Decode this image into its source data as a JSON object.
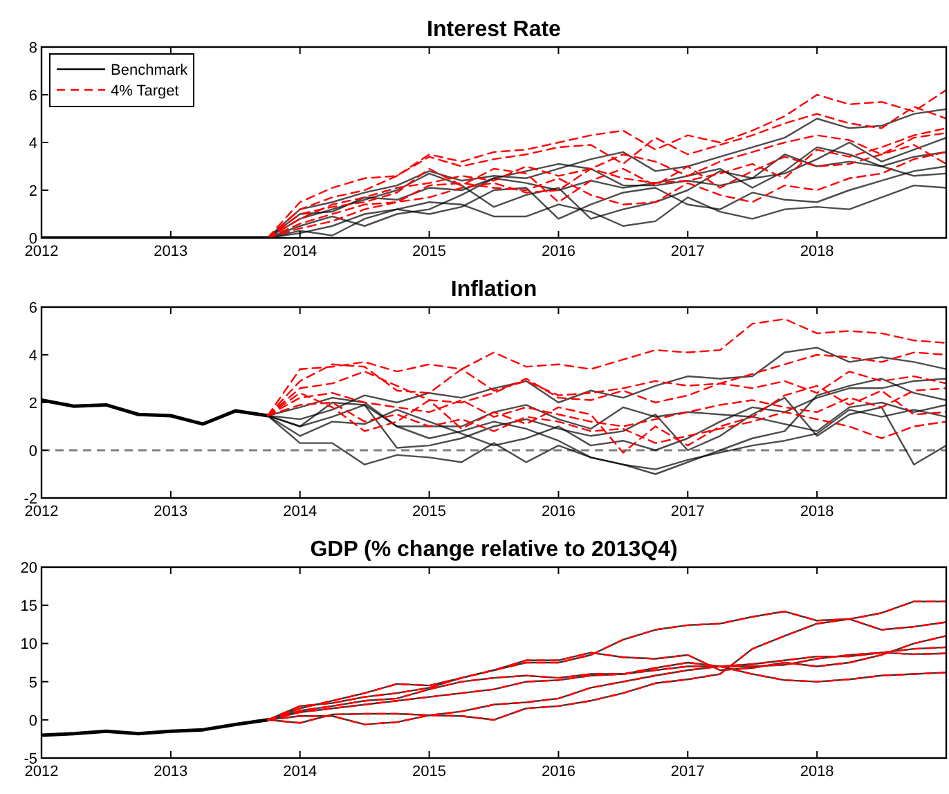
{
  "chart_data": [
    {
      "type": "line",
      "title": "Interest Rate",
      "xlim": [
        2012,
        2019
      ],
      "xticks": [
        2012,
        2013,
        2014,
        2015,
        2016,
        2017,
        2018
      ],
      "ylim": [
        0,
        8
      ],
      "yticks": [
        0,
        2,
        4,
        6,
        8
      ],
      "legend": "top left",
      "grid": false,
      "x": [
        2013.75,
        2014,
        2014.25,
        2014.5,
        2014.75,
        2015,
        2015.25,
        2015.5,
        2015.75,
        2016,
        2016.25,
        2016.5,
        2016.75,
        2017,
        2017.25,
        2017.5,
        2017.75,
        2018,
        2018.25,
        2018.5,
        2018.75,
        2019
      ],
      "series": [
        {
          "color": "#000000",
          "x": [
            2012,
            2013.75
          ],
          "values": [
            0,
            0
          ]
        },
        {
          "name": "Benchmark",
          "color": "#000000",
          "values": [
            0,
            1.2,
            1.5,
            1.9,
            2.2,
            2.8,
            2.4,
            2.6,
            2.5,
            2.9,
            3.3,
            3.6,
            2.8,
            3.0,
            3.4,
            3.8,
            4.2,
            5.0,
            4.6,
            4.7,
            5.2,
            5.4
          ]
        },
        {
          "color": "#000000",
          "values": [
            0,
            0.8,
            1.2,
            1.6,
            2.0,
            2.7,
            2.2,
            1.3,
            1.8,
            2.1,
            0.8,
            1.2,
            1.5,
            2.0,
            2.8,
            2.5,
            3.5,
            3.0,
            3.2,
            3.0,
            3.4,
            3.6
          ]
        },
        {
          "color": "#000000",
          "values": [
            0,
            0.3,
            0.1,
            0.8,
            1.2,
            1.5,
            1.4,
            0.9,
            0.9,
            1.4,
            1.1,
            0.5,
            0.7,
            1.7,
            1.1,
            0.8,
            1.2,
            1.3,
            1.2,
            1.7,
            2.2,
            2.1
          ]
        },
        {
          "color": "#000000",
          "values": [
            0,
            0.5,
            0.9,
            0.5,
            1.0,
            1.2,
            1.8,
            2.5,
            2.3,
            2.0,
            2.4,
            2.1,
            2.3,
            2.6,
            2.9,
            2.1,
            2.8,
            3.8,
            3.5,
            3.0,
            2.6,
            2.7
          ]
        },
        {
          "color": "#000000",
          "values": [
            0,
            0.2,
            0.5,
            1.0,
            1.2,
            1.0,
            1.3,
            2.0,
            2.1,
            0.8,
            1.4,
            1.9,
            2.1,
            1.4,
            1.2,
            1.9,
            1.6,
            1.5,
            2.0,
            2.4,
            2.8,
            3.0
          ]
        },
        {
          "color": "#000000",
          "values": [
            0,
            1.0,
            1.1,
            1.7,
            1.6,
            2.1,
            2.0,
            2.5,
            2.8,
            3.1,
            2.9,
            2.2,
            2.2,
            2.4,
            2.2,
            2.5,
            2.7,
            3.3,
            4.0,
            3.2,
            3.7,
            4.2
          ]
        },
        {
          "name": "4% Target",
          "color": "#ff0000",
          "line_style": "dashed",
          "values": [
            0,
            1.5,
            2.1,
            2.5,
            2.6,
            3.5,
            3.2,
            3.6,
            3.7,
            4.0,
            4.3,
            4.5,
            3.7,
            4.3,
            4.0,
            4.5,
            5.1,
            6.0,
            5.6,
            5.7,
            5.3,
            6.2
          ]
        },
        {
          "color": "#ff0000",
          "line_style": "dashed",
          "values": [
            0,
            1.2,
            1.7,
            2.0,
            2.6,
            3.4,
            3.0,
            3.3,
            3.5,
            3.8,
            3.9,
            3.1,
            4.2,
            3.5,
            3.9,
            4.3,
            4.8,
            5.2,
            4.8,
            4.6,
            5.5,
            5.0
          ]
        },
        {
          "color": "#ff0000",
          "line_style": "dashed",
          "values": [
            0,
            0.8,
            1.4,
            1.7,
            2.1,
            2.3,
            2.6,
            2.4,
            3.0,
            2.6,
            2.9,
            3.5,
            3.2,
            2.6,
            3.2,
            3.6,
            4.0,
            4.3,
            4.1,
            3.5,
            4.2,
            4.4
          ]
        },
        {
          "color": "#ff0000",
          "line_style": "dashed",
          "values": [
            0,
            0.6,
            1.0,
            1.4,
            1.5,
            2.2,
            2.3,
            2.1,
            2.0,
            2.5,
            1.8,
            1.4,
            1.5,
            2.3,
            1.8,
            1.5,
            2.2,
            2.0,
            2.5,
            2.7,
            3.3,
            3.6
          ]
        },
        {
          "color": "#ff0000",
          "line_style": "dashed",
          "values": [
            0,
            1.0,
            1.3,
            1.5,
            1.9,
            2.9,
            2.2,
            2.9,
            2.7,
            1.5,
            2.4,
            2.9,
            2.2,
            3.0,
            2.1,
            2.8,
            3.4,
            3.0,
            3.1,
            3.5,
            3.9,
            3.1
          ]
        },
        {
          "color": "#ff0000",
          "line_style": "dashed",
          "values": [
            0,
            0.4,
            0.7,
            1.2,
            1.5,
            1.7,
            2.1,
            2.3,
            1.9,
            2.0,
            2.9,
            2.5,
            2.3,
            2.4,
            2.7,
            3.1,
            2.5,
            3.7,
            3.4,
            3.8,
            4.3,
            4.6
          ]
        }
      ]
    },
    {
      "type": "line",
      "title": "Inflation",
      "xlim": [
        2012,
        2019
      ],
      "xticks": [
        2012,
        2013,
        2014,
        2015,
        2016,
        2017,
        2018
      ],
      "ylim": [
        -2,
        6
      ],
      "yticks": [
        -2,
        0,
        2,
        4,
        6
      ],
      "grid": false,
      "ref_lines": [
        {
          "axis": "y",
          "value": 0,
          "color": "#808080",
          "line_style": "dashed"
        }
      ],
      "x": [
        2013.75,
        2014,
        2014.25,
        2014.5,
        2014.75,
        2015,
        2015.25,
        2015.5,
        2015.75,
        2016,
        2016.25,
        2016.5,
        2016.75,
        2017,
        2017.25,
        2017.5,
        2017.75,
        2018,
        2018.25,
        2018.5,
        2018.75,
        2019
      ],
      "series": [
        {
          "color": "#000000",
          "x": [
            2012,
            2012.25,
            2012.5,
            2012.75,
            2013,
            2013.25,
            2013.5,
            2013.75
          ],
          "values": [
            2.1,
            1.85,
            1.9,
            1.5,
            1.45,
            1.1,
            1.65,
            1.45
          ]
        },
        {
          "color": "#000000",
          "values": [
            1.45,
            1.8,
            2.2,
            2.0,
            1.0,
            0.5,
            0.8,
            1.2,
            0.9,
            0.4,
            -0.3,
            -0.6,
            -1.0,
            -0.5,
            0.0,
            0.5,
            0.8,
            2.3,
            2.7,
            3.0,
            2.4,
            2.1
          ]
        },
        {
          "color": "#000000",
          "values": [
            1.45,
            1.3,
            1.7,
            2.3,
            2.0,
            2.4,
            2.2,
            2.6,
            2.9,
            2.0,
            2.5,
            2.2,
            2.7,
            3.1,
            3.0,
            3.1,
            4.1,
            4.3,
            3.7,
            3.9,
            3.7,
            3.4
          ]
        },
        {
          "color": "#000000",
          "values": [
            1.45,
            0.3,
            0.3,
            -0.6,
            -0.2,
            -0.3,
            -0.5,
            0.3,
            -0.5,
            0.2,
            -0.3,
            -0.6,
            -0.8,
            -0.4,
            -0.1,
            0.2,
            0.4,
            0.7,
            1.7,
            1.4,
            1.7,
            1.4
          ]
        },
        {
          "color": "#000000",
          "values": [
            1.45,
            1.0,
            1.4,
            1.9,
            0.1,
            0.2,
            0.5,
            1.0,
            1.3,
            0.9,
            0.6,
            0.8,
            1.5,
            0.0,
            0.6,
            1.5,
            2.2,
            0.6,
            1.5,
            1.8,
            -0.6,
            0.2
          ]
        },
        {
          "color": "#000000",
          "values": [
            1.45,
            0.6,
            1.2,
            1.1,
            1.7,
            1.2,
            0.7,
            0.2,
            0.5,
            1.0,
            0.2,
            0.4,
            0.0,
            0.5,
            1.2,
            1.8,
            1.6,
            2.2,
            2.6,
            2.6,
            2.9,
            3.0
          ]
        },
        {
          "color": "#000000",
          "values": [
            1.45,
            1.0,
            2.0,
            1.9,
            1.0,
            1.0,
            1.0,
            1.6,
            1.9,
            1.3,
            0.9,
            1.8,
            1.4,
            1.6,
            1.5,
            1.4,
            1.1,
            0.8,
            1.8,
            2.0,
            1.6,
            1.9
          ]
        },
        {
          "color": "#ff0000",
          "line_style": "dashed",
          "values": [
            1.45,
            3.4,
            3.5,
            3.7,
            3.3,
            3.6,
            3.4,
            4.1,
            3.5,
            3.6,
            3.4,
            3.8,
            4.2,
            4.1,
            4.2,
            5.3,
            5.5,
            4.9,
            5.0,
            4.9,
            4.6,
            4.5
          ]
        },
        {
          "color": "#ff0000",
          "line_style": "dashed",
          "values": [
            1.45,
            2.9,
            3.6,
            3.5,
            2.5,
            2.4,
            3.4,
            2.5,
            2.9,
            2.3,
            2.4,
            2.6,
            2.9,
            2.7,
            2.8,
            3.2,
            3.6,
            4.0,
            3.9,
            3.7,
            4.1,
            4.0
          ]
        },
        {
          "color": "#ff0000",
          "line_style": "dashed",
          "values": [
            1.45,
            2.6,
            2.8,
            3.3,
            2.7,
            2.1,
            2.0,
            2.4,
            3.0,
            2.2,
            2.1,
            2.5,
            2.0,
            2.3,
            2.8,
            2.6,
            2.9,
            2.4,
            3.3,
            2.9,
            3.1,
            2.8
          ]
        },
        {
          "color": "#ff0000",
          "line_style": "dashed",
          "values": [
            1.45,
            2.2,
            2.4,
            2.0,
            1.8,
            1.6,
            2.1,
            1.4,
            1.8,
            1.5,
            1.2,
            1.0,
            1.3,
            1.6,
            1.9,
            2.1,
            1.8,
            1.6,
            2.2,
            1.8,
            2.5,
            2.6
          ]
        },
        {
          "color": "#ff0000",
          "line_style": "dashed",
          "values": [
            1.45,
            1.9,
            2.0,
            1.2,
            1.5,
            1.0,
            1.3,
            0.8,
            1.4,
            1.2,
            0.8,
            0.9,
            0.3,
            0.6,
            0.9,
            1.2,
            1.6,
            1.3,
            1.0,
            0.5,
            1.0,
            1.2
          ]
        },
        {
          "color": "#ff0000",
          "line_style": "dashed",
          "values": [
            1.45,
            2.4,
            1.8,
            0.8,
            1.2,
            2.1,
            0.9,
            1.6,
            1.1,
            1.8,
            1.5,
            -0.1,
            1.0,
            0.2,
            1.0,
            1.4,
            2.3,
            2.7,
            1.9,
            2.5,
            1.5,
            1.6
          ]
        }
      ]
    },
    {
      "type": "line",
      "title": "GDP (% change relative to 2013Q4)",
      "xlim": [
        2012,
        2019
      ],
      "xticks": [
        2012,
        2013,
        2014,
        2015,
        2016,
        2017,
        2018
      ],
      "ylim": [
        -5,
        20
      ],
      "yticks": [
        -5,
        0,
        5,
        10,
        15,
        20
      ],
      "grid": false,
      "x": [
        2013.75,
        2014,
        2014.25,
        2014.5,
        2014.75,
        2015,
        2015.25,
        2015.5,
        2015.75,
        2016,
        2016.25,
        2016.5,
        2016.75,
        2017,
        2017.25,
        2017.5,
        2017.75,
        2018,
        2018.25,
        2018.5,
        2018.75,
        2019
      ],
      "series": [
        {
          "color": "#000000",
          "x": [
            2012,
            2012.25,
            2012.5,
            2012.75,
            2013,
            2013.25,
            2013.5,
            2013.75
          ],
          "values": [
            -2.0,
            -1.8,
            -1.5,
            -1.8,
            -1.5,
            -1.3,
            -0.6,
            0
          ]
        },
        {
          "color": "#333333",
          "values": [
            0,
            1.5,
            2.5,
            3.5,
            4.7,
            4.5,
            5.5,
            6.5,
            7.5,
            7.5,
            8.5,
            10.5,
            11.8,
            12.4,
            12.6,
            13.5,
            14.2,
            13.0,
            13.2,
            14.0,
            15.5,
            15.5
          ]
        },
        {
          "color": "#333333",
          "values": [
            0,
            1.0,
            1.5,
            2.0,
            2.5,
            3.0,
            3.5,
            4.0,
            5.0,
            5.2,
            5.8,
            6.0,
            6.5,
            7.0,
            7.0,
            7.3,
            7.8,
            8.3,
            8.3,
            8.8,
            9.3,
            9.5
          ]
        },
        {
          "color": "#333333",
          "values": [
            0,
            0.5,
            0.5,
            -0.6,
            -0.3,
            0.6,
            1.1,
            2.0,
            2.3,
            2.8,
            4.2,
            5.0,
            5.8,
            6.5,
            7.0,
            7.0,
            7.2,
            8.0,
            8.5,
            8.8,
            8.6,
            8.7
          ]
        },
        {
          "color": "#333333",
          "values": [
            0,
            -0.4,
            0.7,
            0.8,
            0.8,
            0.6,
            0.5,
            0.0,
            1.5,
            1.8,
            2.5,
            3.5,
            4.8,
            5.3,
            6.0,
            9.3,
            11.0,
            12.6,
            13.2,
            11.8,
            12.2,
            12.8
          ]
        },
        {
          "color": "#333333",
          "values": [
            0,
            1.2,
            1.8,
            2.5,
            2.8,
            4.0,
            5.0,
            5.5,
            5.8,
            5.5,
            6.0,
            6.0,
            6.8,
            7.5,
            7.0,
            6.0,
            5.2,
            5.0,
            5.3,
            5.8,
            6.0,
            6.2
          ]
        },
        {
          "color": "#333333",
          "values": [
            0,
            1.8,
            2.2,
            3.0,
            3.5,
            4.2,
            5.5,
            6.5,
            7.8,
            7.8,
            8.8,
            8.2,
            8.0,
            8.5,
            6.5,
            6.8,
            7.5,
            7.0,
            7.5,
            8.5,
            10.0,
            11.0
          ]
        },
        {
          "color": "#ff0000",
          "line_style": "dashed",
          "values": [
            0,
            1.5,
            2.5,
            3.5,
            4.7,
            4.5,
            5.5,
            6.5,
            7.5,
            7.5,
            8.5,
            10.5,
            11.8,
            12.4,
            12.6,
            13.5,
            14.2,
            13.0,
            13.2,
            14.0,
            15.5,
            15.5
          ]
        },
        {
          "color": "#ff0000",
          "line_style": "dashed",
          "values": [
            0,
            1.0,
            1.5,
            2.0,
            2.5,
            3.0,
            3.5,
            4.0,
            5.0,
            5.2,
            5.8,
            6.0,
            6.5,
            7.0,
            7.0,
            7.3,
            7.8,
            8.3,
            8.3,
            8.8,
            9.3,
            9.5
          ]
        },
        {
          "color": "#ff0000",
          "line_style": "dashed",
          "values": [
            0,
            0.5,
            0.5,
            -0.6,
            -0.3,
            0.6,
            1.1,
            2.0,
            2.3,
            2.8,
            4.2,
            5.0,
            5.8,
            6.5,
            7.0,
            7.0,
            7.2,
            8.0,
            8.5,
            8.8,
            8.6,
            8.7
          ]
        },
        {
          "color": "#ff0000",
          "line_style": "dashed",
          "values": [
            0,
            -0.4,
            0.7,
            0.8,
            0.8,
            0.6,
            0.5,
            0.0,
            1.5,
            1.8,
            2.5,
            3.5,
            4.8,
            5.3,
            6.0,
            9.3,
            11.0,
            12.6,
            13.2,
            11.8,
            12.2,
            12.8
          ]
        },
        {
          "color": "#ff0000",
          "line_style": "dashed",
          "values": [
            0,
            1.2,
            1.8,
            2.5,
            2.8,
            4.0,
            5.0,
            5.5,
            5.8,
            5.5,
            6.0,
            6.0,
            6.8,
            7.5,
            7.0,
            6.0,
            5.2,
            5.0,
            5.3,
            5.8,
            6.0,
            6.2
          ]
        },
        {
          "color": "#ff0000",
          "line_style": "dashed",
          "values": [
            0,
            1.8,
            2.2,
            3.0,
            3.5,
            4.2,
            5.5,
            6.5,
            7.8,
            7.8,
            8.8,
            8.2,
            8.0,
            8.5,
            6.5,
            6.8,
            7.5,
            7.0,
            7.5,
            8.5,
            10.0,
            11.0
          ]
        }
      ]
    }
  ]
}
